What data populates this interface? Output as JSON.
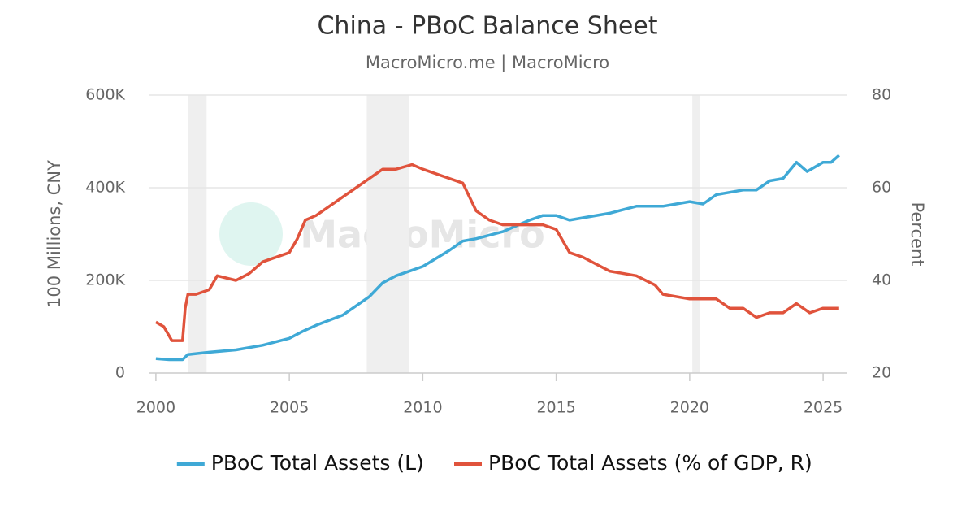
{
  "chart_data": {
    "type": "line",
    "title": "China - PBoC Balance Sheet",
    "subtitle": "MacroMicro.me | MacroMicro",
    "watermark": "MacroMicro",
    "y_label": "100 Millions, CNY",
    "y2_label": "Percent",
    "xlim": [
      1999.76,
      2025.91
    ],
    "xticks": [
      2000,
      2005,
      2010,
      2015,
      2020,
      2025
    ],
    "ylim": [
      0,
      600000
    ],
    "yticks": [
      0,
      {
        "value": 200000,
        "label": "200K"
      },
      {
        "value": 400000,
        "label": "400K"
      },
      {
        "value": 600000,
        "label": "600K"
      }
    ],
    "y2lim": [
      20,
      80
    ],
    "y2ticks": [
      20,
      40,
      60,
      80
    ],
    "grid": true,
    "legend": "bottom",
    "shaded_ranges": [
      [
        2001.2,
        2001.9
      ],
      [
        2007.9,
        2009.5
      ],
      [
        2020.1,
        2020.4
      ]
    ],
    "series": [
      {
        "name": "PBoC Total Assets (L)",
        "color": "#3fa9d6",
        "x": [
          2000,
          2000.5,
          2001.0,
          2001.2,
          2002,
          2003,
          2004,
          2005,
          2005.5,
          2006,
          2007,
          2008,
          2008.5,
          2009,
          2010,
          2011,
          2011.5,
          2012,
          2013,
          2014,
          2014.5,
          2015,
          2015.5,
          2016,
          2017,
          2018,
          2019,
          2020,
          2020.5,
          2021,
          2022,
          2022.5,
          2023,
          2023.5,
          2024,
          2024.4,
          2025,
          2025.3,
          2025.6
        ],
        "values": [
          31000,
          29000,
          29000,
          40000,
          45000,
          50000,
          60000,
          75000,
          90000,
          103000,
          125000,
          165000,
          195000,
          210000,
          230000,
          265000,
          285000,
          290000,
          305000,
          330000,
          340000,
          340000,
          330000,
          335000,
          345000,
          360000,
          360000,
          370000,
          365000,
          385000,
          395000,
          395000,
          415000,
          420000,
          455000,
          435000,
          455000,
          455000,
          470000
        ]
      },
      {
        "name": "PBoC Total Assets (% of GDP, R)",
        "color": "#e0533c",
        "axis": "y2",
        "x": [
          2000,
          2000.3,
          2000.6,
          2001,
          2001.1,
          2001.2,
          2001.5,
          2002,
          2002.3,
          2003,
          2003.5,
          2004,
          2005,
          2005.3,
          2005.6,
          2006,
          2007,
          2007.5,
          2008,
          2008.5,
          2009,
          2009.6,
          2010,
          2011,
          2011.5,
          2012,
          2012.5,
          2013,
          2014,
          2014.5,
          2015,
          2015.5,
          2016,
          2017,
          2018,
          2018.7,
          2019,
          2020,
          2020.5,
          2021,
          2021.5,
          2022,
          2022.5,
          2023,
          2023.5,
          2024,
          2024.5,
          2025,
          2025.6
        ],
        "values": [
          31,
          30,
          27,
          27,
          34,
          37,
          37,
          38,
          41,
          40,
          41.5,
          44,
          46,
          49,
          53,
          54,
          58,
          60,
          62,
          64,
          64,
          65,
          64,
          62,
          61,
          55,
          53,
          52,
          52,
          52,
          51,
          46,
          45,
          42,
          41,
          39,
          37,
          36,
          36,
          36,
          34,
          34,
          32,
          33,
          33,
          35,
          33,
          34,
          34
        ]
      }
    ]
  }
}
